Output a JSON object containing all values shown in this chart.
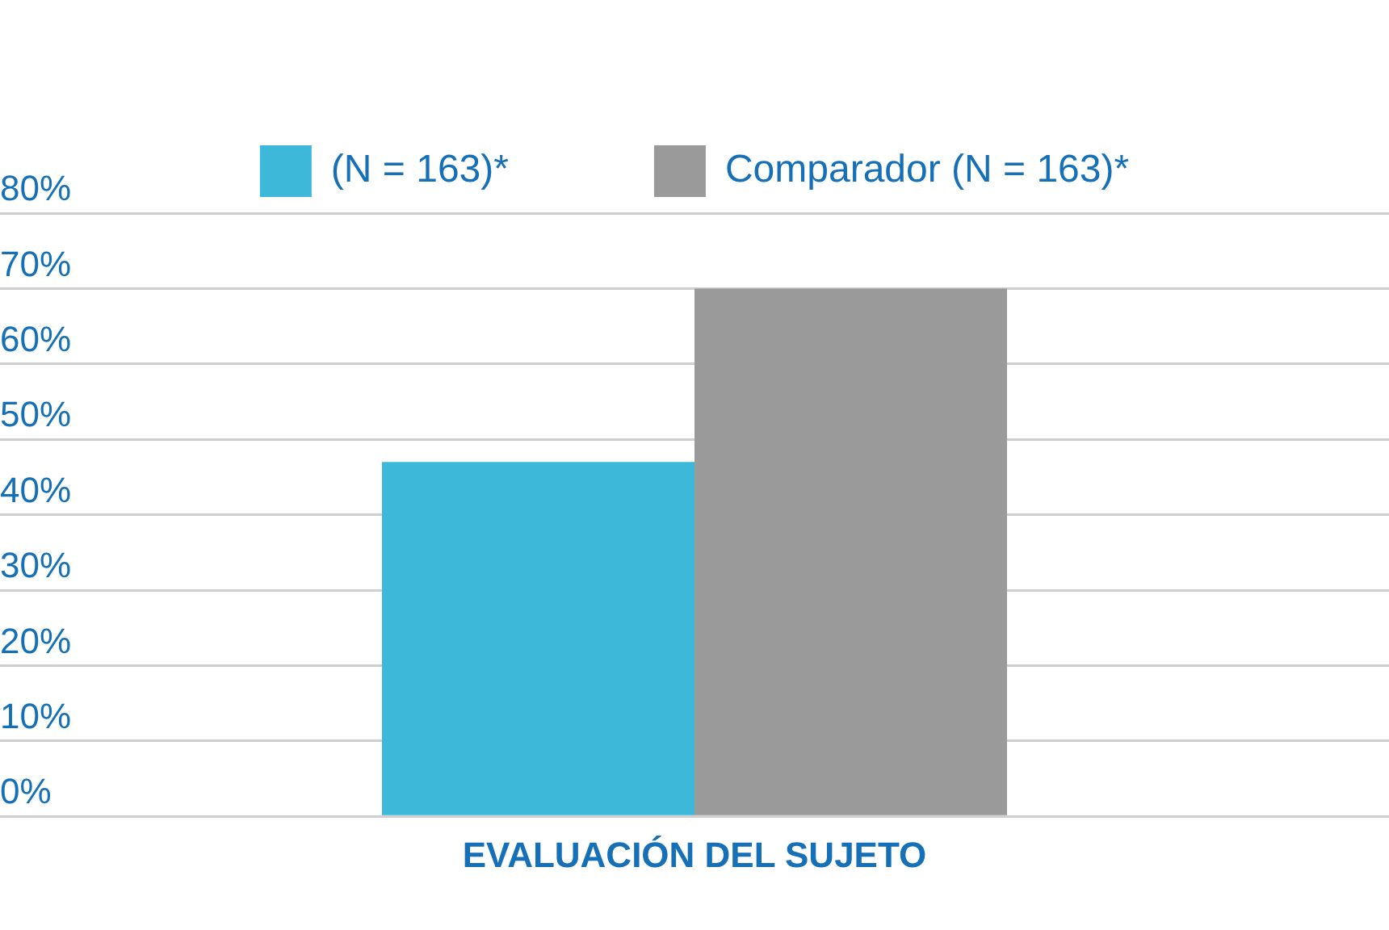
{
  "chart_data": {
    "type": "bar",
    "categories": [
      "EVALUACIÓN DEL SUJETO"
    ],
    "series": [
      {
        "name": "(N = 163)*",
        "color": "#3db8d8",
        "values": [
          47
        ]
      },
      {
        "name": "Comparador (N = 163)*",
        "color": "#9a9a9a",
        "values": [
          70
        ]
      }
    ],
    "ylim": [
      0,
      80
    ],
    "yticks": [
      {
        "value": 0,
        "label": "0%"
      },
      {
        "value": 10,
        "label": "10%"
      },
      {
        "value": 20,
        "label": "20%"
      },
      {
        "value": 30,
        "label": "30%"
      },
      {
        "value": 40,
        "label": "40%"
      },
      {
        "value": 50,
        "label": "50%"
      },
      {
        "value": 60,
        "label": "60%"
      },
      {
        "value": 70,
        "label": "70%"
      },
      {
        "value": 80,
        "label": "80%"
      }
    ],
    "grid": "y",
    "legend": "top"
  }
}
